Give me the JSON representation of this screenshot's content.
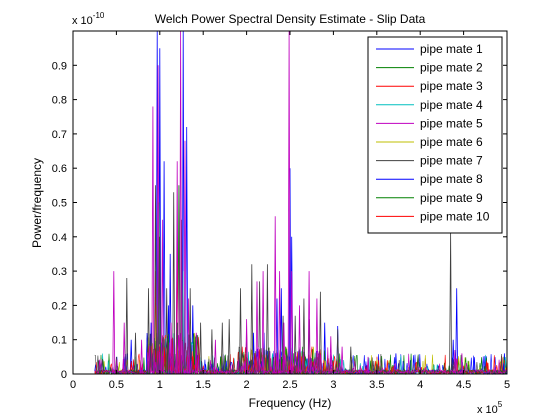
{
  "chart_data": {
    "type": "line",
    "title": "Welch Power Spectral Density Estimate - Slip Data",
    "xlabel": "Frequency (Hz)",
    "ylabel": "Power/frequency",
    "x_multiplier_label": "x 10",
    "x_multiplier_exp": "5",
    "y_multiplier_label": "x 10",
    "y_multiplier_exp": "-10",
    "xlim": [
      0,
      5
    ],
    "ylim": [
      0,
      1.0
    ],
    "x_ticks": [
      "0",
      "0.5",
      "1",
      "1.5",
      "2",
      "2.5",
      "3",
      "3.5",
      "4",
      "4.5",
      "5"
    ],
    "y_ticks": [
      "0",
      "0.1",
      "0.2",
      "0.3",
      "0.4",
      "0.5",
      "0.6",
      "0.7",
      "0.8",
      "0.9"
    ],
    "legend_position": "top-right",
    "grid": false,
    "series": [
      {
        "name": "pipe mate 1",
        "color": "#0000ff",
        "peaks": [
          [
            0.97,
            1.0
          ],
          [
            1.0,
            0.95
          ],
          [
            1.05,
            0.62
          ],
          [
            1.27,
            1.0
          ],
          [
            1.31,
            0.72
          ],
          [
            1.38,
            0.2
          ],
          [
            2.35,
            0.22
          ],
          [
            2.4,
            0.25
          ],
          [
            2.5,
            0.6
          ],
          [
            2.52,
            0.4
          ],
          [
            2.9,
            0.15
          ],
          [
            3.05,
            0.14
          ],
          [
            3.72,
            0.06
          ],
          [
            4.38,
            0.1
          ],
          [
            4.42,
            0.25
          ],
          [
            4.97,
            0.06
          ],
          [
            0.67,
            0.1
          ],
          [
            1.12,
            0.35
          ],
          [
            2.2,
            0.12
          ]
        ]
      },
      {
        "name": "pipe mate 2",
        "color": "#008000",
        "peaks": [
          [
            0.58,
            0.03
          ],
          [
            0.99,
            0.5
          ],
          [
            1.22,
            0.55
          ],
          [
            2.45,
            0.08
          ],
          [
            4.4,
            0.03
          ],
          [
            1.7,
            0.05
          ]
        ]
      },
      {
        "name": "pipe mate 3",
        "color": "#ff0000",
        "peaks": [
          [
            0.95,
            0.3
          ],
          [
            1.2,
            0.4
          ],
          [
            2.3,
            0.05
          ],
          [
            0.8,
            0.03
          ]
        ]
      },
      {
        "name": "pipe mate 4",
        "color": "#00bfbf",
        "peaks": [
          [
            1.0,
            0.25
          ],
          [
            1.28,
            0.3
          ],
          [
            2.3,
            0.06
          ],
          [
            1.9,
            0.03
          ]
        ]
      },
      {
        "name": "pipe mate 5",
        "color": "#bf00bf",
        "peaks": [
          [
            0.47,
            0.3
          ],
          [
            0.59,
            0.15
          ],
          [
            0.79,
            0.1
          ],
          [
            0.92,
            0.78
          ],
          [
            0.98,
            0.9
          ],
          [
            1.03,
            0.45
          ],
          [
            1.13,
            0.15
          ],
          [
            1.2,
            0.62
          ],
          [
            1.24,
            1.0
          ],
          [
            1.29,
            0.68
          ],
          [
            1.33,
            0.22
          ],
          [
            1.42,
            0.12
          ],
          [
            1.64,
            0.1
          ],
          [
            2.0,
            0.16
          ],
          [
            2.12,
            0.27
          ],
          [
            2.19,
            0.3
          ],
          [
            2.33,
            0.46
          ],
          [
            2.38,
            0.3
          ],
          [
            2.43,
            0.15
          ],
          [
            2.49,
            1.0
          ],
          [
            2.52,
            0.3
          ],
          [
            2.61,
            0.2
          ],
          [
            2.72,
            0.3
          ],
          [
            2.81,
            0.22
          ],
          [
            2.97,
            0.11
          ],
          [
            3.1,
            0.08
          ],
          [
            3.4,
            0.05
          ],
          [
            4.4,
            0.07
          ],
          [
            4.48,
            0.06
          ]
        ]
      },
      {
        "name": "pipe mate 6",
        "color": "#bfbf00",
        "peaks": [
          [
            0.96,
            0.2
          ],
          [
            1.25,
            0.3
          ],
          [
            2.25,
            0.05
          ]
        ]
      },
      {
        "name": "pipe mate 7",
        "color": "#404040",
        "peaks": [
          [
            0.3,
            0.04
          ],
          [
            0.5,
            0.05
          ],
          [
            0.62,
            0.28
          ],
          [
            0.72,
            0.12
          ],
          [
            0.87,
            0.25
          ],
          [
            0.95,
            0.55
          ],
          [
            1.0,
            0.4
          ],
          [
            1.08,
            0.25
          ],
          [
            1.16,
            0.53
          ],
          [
            1.25,
            0.45
          ],
          [
            1.35,
            0.25
          ],
          [
            1.47,
            0.15
          ],
          [
            1.6,
            0.13
          ],
          [
            1.72,
            0.15
          ],
          [
            1.8,
            0.16
          ],
          [
            1.93,
            0.25
          ],
          [
            2.0,
            0.12
          ],
          [
            2.06,
            0.32
          ],
          [
            2.15,
            0.27
          ],
          [
            2.24,
            0.32
          ],
          [
            2.42,
            0.17
          ],
          [
            2.56,
            0.17
          ],
          [
            2.66,
            0.22
          ],
          [
            2.72,
            0.16
          ],
          [
            2.85,
            0.24
          ],
          [
            3.05,
            0.13
          ],
          [
            3.2,
            0.08
          ],
          [
            3.5,
            0.03
          ],
          [
            4.35,
            0.42
          ]
        ]
      },
      {
        "name": "pipe mate 8",
        "color": "#0000ff",
        "peaks": [
          [
            0.9,
            0.15
          ],
          [
            1.1,
            0.2
          ],
          [
            2.08,
            0.12
          ]
        ]
      },
      {
        "name": "pipe mate 9",
        "color": "#008000",
        "peaks": [
          [
            0.97,
            0.12
          ],
          [
            1.2,
            0.15
          ],
          [
            2.4,
            0.05
          ]
        ]
      },
      {
        "name": "pipe mate 10",
        "color": "#ff0000",
        "peaks": [
          [
            1.0,
            0.08
          ],
          [
            1.23,
            0.1
          ],
          [
            2.5,
            0.04
          ]
        ]
      }
    ]
  }
}
